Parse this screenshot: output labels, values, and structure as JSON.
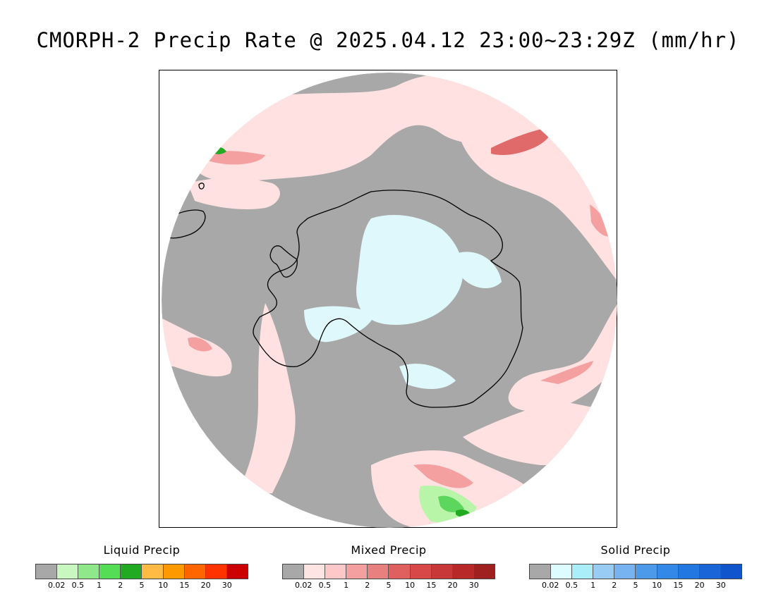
{
  "title": "CMORPH-2 Precip Rate @ 2025.04.12 23:00~23:29Z (mm/hr)",
  "map": {
    "colors": {
      "no_precip": "#a8a8a8",
      "mixed_light": "#ffe1e1",
      "mixed_mid": "#f5a0a0",
      "mixed_strong": "#e06a6a",
      "solid_light": "#dff8fb",
      "liquid_light": "#b8f5a8",
      "liquid_mid": "#5cd65c",
      "liquid_strong": "#22aa22",
      "coastline": "#000000"
    }
  },
  "legends": [
    {
      "title": "Liquid Precip",
      "colors": [
        "#a8a8a8",
        "#c8f7c0",
        "#8fe88a",
        "#55dd55",
        "#22aa22",
        "#ffbb44",
        "#ff9900",
        "#ff6600",
        "#ff3300",
        "#cc0000"
      ],
      "ticks": [
        "0.02",
        "0.5",
        "1",
        "2",
        "5",
        "10",
        "15",
        "20",
        "30"
      ]
    },
    {
      "title": "Mixed Precip",
      "colors": [
        "#a8a8a8",
        "#ffe4e4",
        "#ffc8c8",
        "#f5a0a0",
        "#e88080",
        "#e06060",
        "#d84848",
        "#c83838",
        "#b82828",
        "#a02020"
      ],
      "ticks": [
        "0.02",
        "0.5",
        "1",
        "2",
        "5",
        "10",
        "15",
        "20",
        "30"
      ]
    },
    {
      "title": "Solid Precip",
      "colors": [
        "#a8a8a8",
        "#dcfcff",
        "#aaeefa",
        "#99ccf5",
        "#77b3f0",
        "#4d99ea",
        "#3388e8",
        "#2277e0",
        "#1a66d8",
        "#1155cc"
      ],
      "ticks": [
        "0.02",
        "0.5",
        "1",
        "2",
        "5",
        "10",
        "15",
        "20",
        "30"
      ]
    }
  ]
}
